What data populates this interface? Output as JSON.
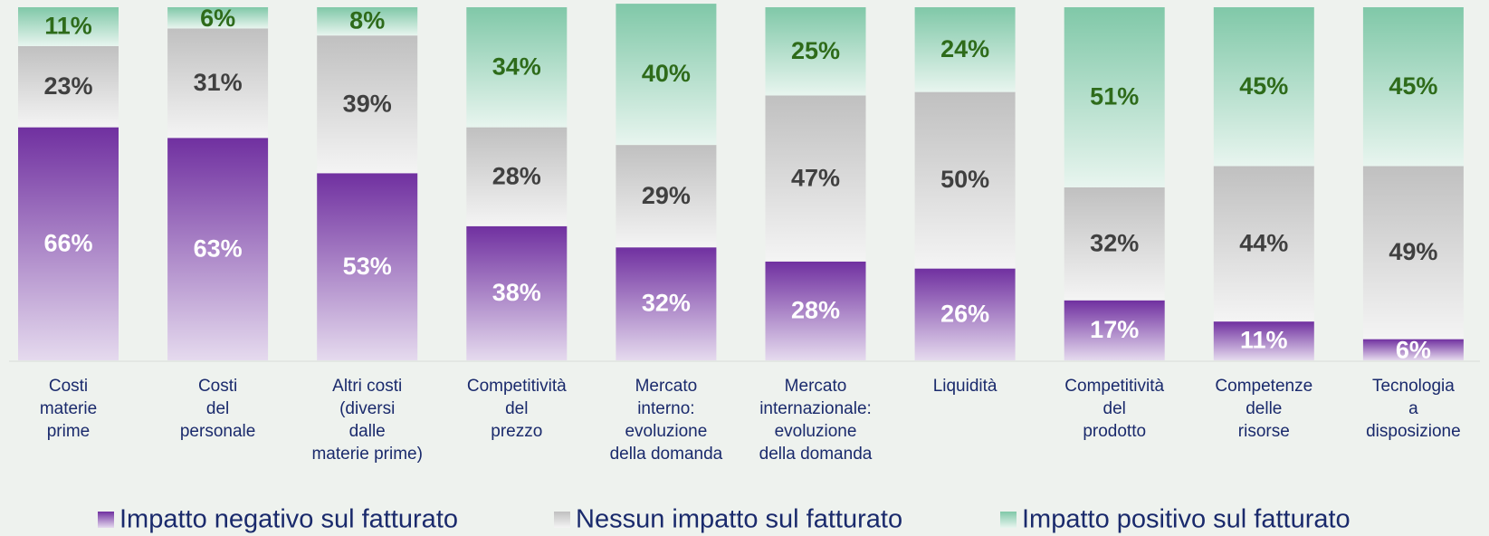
{
  "chart_data": {
    "type": "stacked_bar",
    "categories": [
      [
        "Costi",
        "materie",
        "prime"
      ],
      [
        "Costi",
        "del",
        "personale"
      ],
      [
        "Altri costi",
        "(diversi",
        "dalle",
        "materie prime)"
      ],
      [
        "Competitività",
        "del",
        "prezzo"
      ],
      [
        "Mercato",
        "interno:",
        "evoluzione",
        "della domanda"
      ],
      [
        "Mercato",
        "internazionale:",
        "evoluzione",
        "della domanda"
      ],
      [
        "Liquidità"
      ],
      [
        "Competitività",
        "del",
        "prodotto"
      ],
      [
        "Competenze",
        "delle",
        "risorse"
      ],
      [
        "Tecnologia",
        "a",
        "disposizione"
      ]
    ],
    "series": [
      {
        "name": "Impatto negativo sul fatturato",
        "color": "#7030a0",
        "label_color": "#ffffff",
        "values": [
          66,
          63,
          53,
          38,
          32,
          28,
          26,
          17,
          11,
          6
        ],
        "value_labels": [
          "66%",
          "63%",
          "53%",
          "38%",
          "32%",
          "28%",
          "26%",
          "17%",
          "11%",
          "6%"
        ]
      },
      {
        "name": "Nessun impatto sul fatturato",
        "color": "#c0c0c0",
        "label_color": "#404040",
        "values": [
          23,
          31,
          39,
          28,
          29,
          47,
          50,
          32,
          44,
          49
        ],
        "value_labels": [
          "23%",
          "31%",
          "39%",
          "28%",
          "29%",
          "47%",
          "50%",
          "32%",
          "44%",
          "49%"
        ]
      },
      {
        "name": "Impatto positivo sul fatturato",
        "color": "#80c8a8",
        "label_color": "#2e6b1a",
        "values": [
          11,
          6,
          8,
          34,
          40,
          25,
          24,
          51,
          45,
          45
        ],
        "value_labels": [
          "11%",
          "6%",
          "8%",
          "34%",
          "40%",
          "25%",
          "24%",
          "51%",
          "45%",
          "45%"
        ]
      }
    ],
    "ylim": [
      0,
      100
    ]
  }
}
